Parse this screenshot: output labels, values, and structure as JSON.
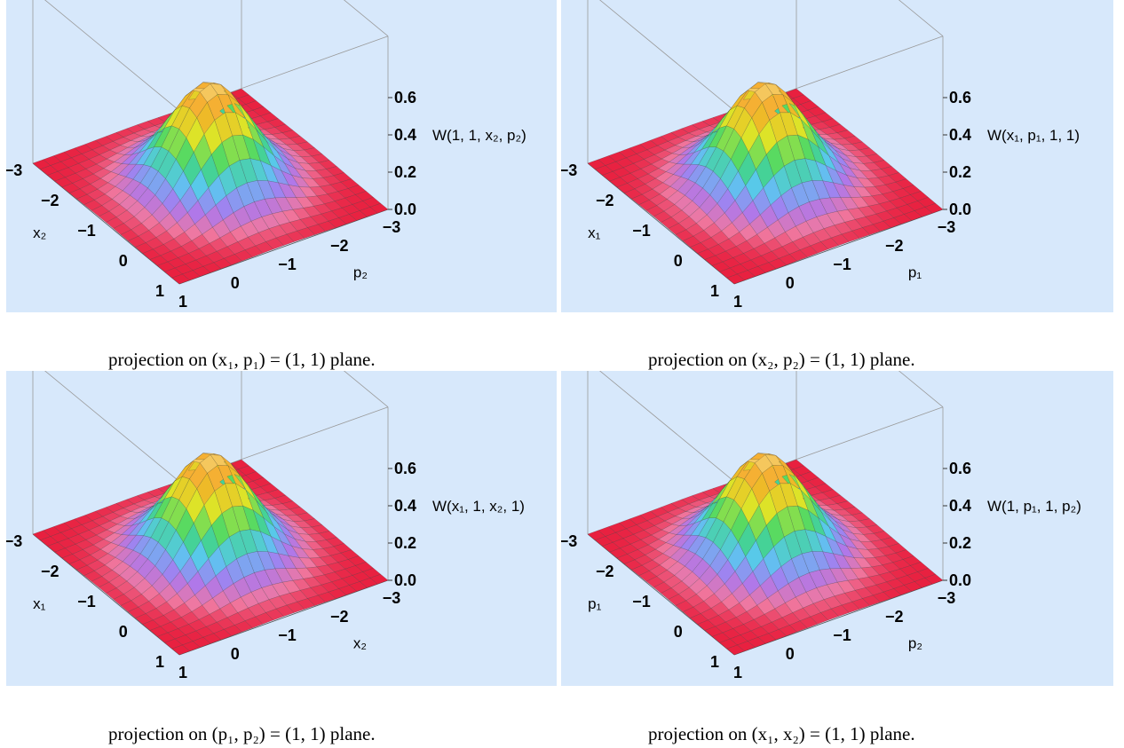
{
  "colors": {
    "panel_bg": "#d7e8fb",
    "surface_low": "#e8203f",
    "grid_line": "#333333",
    "box_line": "#9a9a9a"
  },
  "captions": [
    {
      "prefix": "projection on ",
      "math": "(x₁, p₁) = (1, 1)",
      "suffix": " plane."
    },
    {
      "prefix": "projection on ",
      "math": "(x₂, p₂) = (1, 1)",
      "suffix": " plane."
    },
    {
      "prefix": "projection on ",
      "math": "(p₁, p₂) = (1, 1)",
      "suffix": " plane."
    },
    {
      "prefix": "projection on ",
      "math": "(x₁, x₂) = (1, 1)",
      "suffix": " plane."
    }
  ],
  "chart_data": [
    {
      "type": "surface3d",
      "zlabel": "W(1, 1, x₂, p₂)",
      "xlabel": "x₂",
      "ylabel": "p₂",
      "x_ticks": [
        "−3",
        "−2",
        "−1",
        "0",
        "1"
      ],
      "y_ticks": [
        "−3",
        "−2",
        "−1",
        "0",
        "1"
      ],
      "z_ticks": [
        "0.0",
        "0.2",
        "0.4",
        "0.6"
      ],
      "xlim": [
        -3,
        1
      ],
      "ylim": [
        -3,
        1
      ],
      "zlim": [
        0,
        0.6
      ],
      "peak": {
        "x": -1,
        "y": -1,
        "z": 0.55
      }
    },
    {
      "type": "surface3d",
      "zlabel": "W(x₁, p₁, 1, 1)",
      "xlabel": "x₁",
      "ylabel": "p₁",
      "x_ticks": [
        "−3",
        "−2",
        "−1",
        "0",
        "1"
      ],
      "y_ticks": [
        "−3",
        "−2",
        "−1",
        "0",
        "1"
      ],
      "z_ticks": [
        "0.0",
        "0.2",
        "0.4",
        "0.6"
      ],
      "xlim": [
        -3,
        1
      ],
      "ylim": [
        -3,
        1
      ],
      "zlim": [
        0,
        0.6
      ],
      "peak": {
        "x": -1,
        "y": -1,
        "z": 0.55
      }
    },
    {
      "type": "surface3d",
      "zlabel": "W(x₁, 1, x₂, 1)",
      "xlabel": "x₁",
      "ylabel": "x₂",
      "x_ticks": [
        "−3",
        "−2",
        "−1",
        "0",
        "1"
      ],
      "y_ticks": [
        "−3",
        "−2",
        "−1",
        "0",
        "1"
      ],
      "z_ticks": [
        "0.0",
        "0.2",
        "0.4",
        "0.6"
      ],
      "xlim": [
        -3,
        1
      ],
      "ylim": [
        -3,
        1
      ],
      "zlim": [
        0,
        0.6
      ],
      "peak": {
        "x": -1,
        "y": -1,
        "z": 0.55
      }
    },
    {
      "type": "surface3d",
      "zlabel": "W(1, p₁, 1, p₂)",
      "xlabel": "p₁",
      "ylabel": "p₂",
      "x_ticks": [
        "−3",
        "−2",
        "−1",
        "0",
        "1"
      ],
      "y_ticks": [
        "−3",
        "−2",
        "−1",
        "0",
        "1"
      ],
      "z_ticks": [
        "0.0",
        "0.2",
        "0.4",
        "0.6"
      ],
      "xlim": [
        -3,
        1
      ],
      "ylim": [
        -3,
        1
      ],
      "zlim": [
        0,
        0.6
      ],
      "peak": {
        "x": -1,
        "y": -1,
        "z": 0.55
      }
    }
  ]
}
